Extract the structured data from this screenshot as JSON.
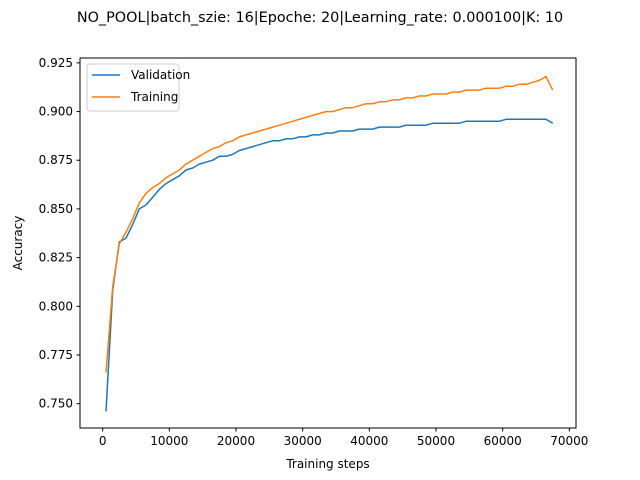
{
  "chart_data": {
    "type": "line",
    "title": "NO_POOL|batch_szie: 16|Epoche: 20|Learning_rate: 0.000100|K: 10",
    "xlabel": "Training steps",
    "ylabel": "Accuracy",
    "xlim": [
      -3400,
      71000
    ],
    "ylim": [
      0.7375,
      0.9275
    ],
    "xticks": [
      0,
      10000,
      20000,
      30000,
      40000,
      50000,
      60000,
      70000
    ],
    "yticks": [
      0.75,
      0.775,
      0.8,
      0.825,
      0.85,
      0.875,
      0.9,
      0.925
    ],
    "xtick_labels": [
      "0",
      "10000",
      "20000",
      "30000",
      "40000",
      "50000",
      "60000",
      "70000"
    ],
    "ytick_labels": [
      "0.750",
      "0.775",
      "0.800",
      "0.825",
      "0.850",
      "0.875",
      "0.900",
      "0.925"
    ],
    "grid": false,
    "legend_position": "upper-left",
    "series": [
      {
        "name": "Validation",
        "color": "#1f77b4",
        "x_start": 500,
        "x_step": 1000,
        "values": [
          0.746,
          0.808,
          0.833,
          0.835,
          0.842,
          0.85,
          0.852,
          0.856,
          0.86,
          0.863,
          0.865,
          0.867,
          0.87,
          0.871,
          0.873,
          0.874,
          0.875,
          0.877,
          0.877,
          0.878,
          0.88,
          0.881,
          0.882,
          0.883,
          0.884,
          0.885,
          0.885,
          0.886,
          0.886,
          0.887,
          0.887,
          0.888,
          0.888,
          0.889,
          0.889,
          0.89,
          0.89,
          0.89,
          0.891,
          0.891,
          0.891,
          0.892,
          0.892,
          0.892,
          0.892,
          0.893,
          0.893,
          0.893,
          0.893,
          0.894,
          0.894,
          0.894,
          0.894,
          0.894,
          0.895,
          0.895,
          0.895,
          0.895,
          0.895,
          0.895,
          0.896,
          0.896,
          0.896,
          0.896,
          0.896,
          0.896,
          0.896,
          0.894
        ]
      },
      {
        "name": "Training",
        "color": "#ff7f0e",
        "x_start": 500,
        "x_step": 1000,
        "values": [
          0.766,
          0.81,
          0.832,
          0.838,
          0.845,
          0.853,
          0.858,
          0.861,
          0.863,
          0.866,
          0.868,
          0.87,
          0.873,
          0.875,
          0.877,
          0.879,
          0.881,
          0.882,
          0.884,
          0.885,
          0.887,
          0.888,
          0.889,
          0.89,
          0.891,
          0.892,
          0.893,
          0.894,
          0.895,
          0.896,
          0.897,
          0.898,
          0.899,
          0.9,
          0.9,
          0.901,
          0.902,
          0.902,
          0.903,
          0.904,
          0.904,
          0.905,
          0.905,
          0.906,
          0.906,
          0.907,
          0.907,
          0.908,
          0.908,
          0.909,
          0.909,
          0.909,
          0.91,
          0.91,
          0.911,
          0.911,
          0.911,
          0.912,
          0.912,
          0.912,
          0.913,
          0.913,
          0.914,
          0.914,
          0.915,
          0.916,
          0.918,
          0.911
        ]
      }
    ]
  }
}
